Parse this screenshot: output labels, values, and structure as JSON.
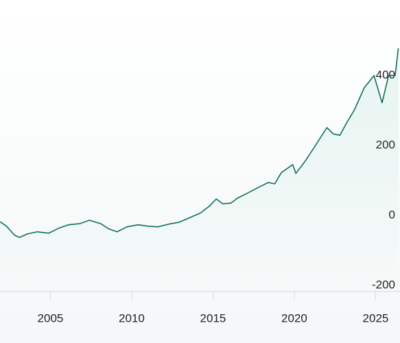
{
  "chart_data": {
    "type": "line",
    "x": [
      2001.9,
      2002.3,
      2002.8,
      2003.1,
      2003.6,
      2004.2,
      2004.9,
      2005.5,
      2006.1,
      2006.8,
      2007.4,
      2008.1,
      2008.6,
      2009.1,
      2009.7,
      2010.4,
      2011.0,
      2011.6,
      2012.3,
      2012.9,
      2013.5,
      2014.2,
      2014.8,
      2015.2,
      2015.6,
      2016.1,
      2016.5,
      2017.1,
      2017.8,
      2018.4,
      2018.8,
      2019.2,
      2019.9,
      2020.1,
      2020.7,
      2021.3,
      2022.0,
      2022.4,
      2022.8,
      2023.2,
      2023.7,
      2024.3,
      2024.9,
      2025.4,
      2025.8,
      2026.2,
      2026.4
    ],
    "series": [
      {
        "color": "#0e6e5c",
        "values": [
          -18,
          -31,
          -57,
          -63,
          -53,
          -47,
          -51,
          -37,
          -27,
          -24,
          -14,
          -24,
          -39,
          -47,
          -33,
          -27,
          -31,
          -33,
          -25,
          -20,
          -8,
          6,
          27,
          47,
          33,
          35,
          49,
          63,
          80,
          94,
          90,
          122,
          145,
          120,
          157,
          200,
          251,
          233,
          229,
          263,
          302,
          365,
          400,
          322,
          400,
          400,
          478
        ]
      }
    ],
    "xlim": [
      2001.9,
      2026.5
    ],
    "xticks": [
      2005,
      2010,
      2015,
      2020,
      2025
    ],
    "ylim": [
      -218,
      616
    ],
    "yticks": [
      -200,
      0,
      200,
      400
    ]
  }
}
